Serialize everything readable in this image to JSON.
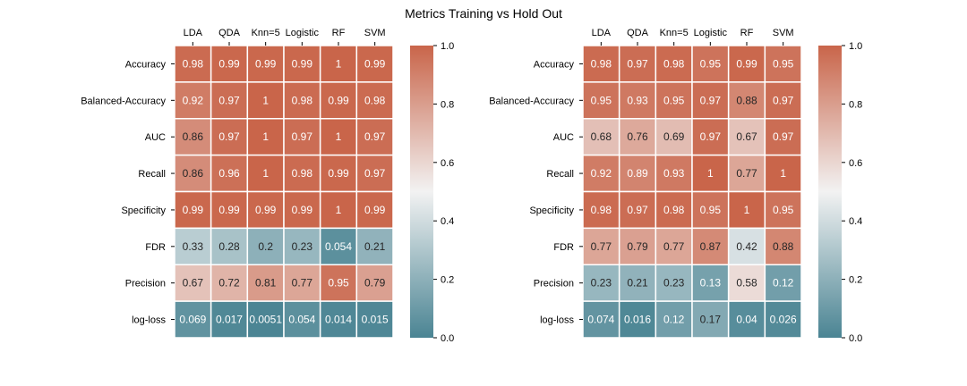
{
  "title": "Metrics Training vs Hold Out",
  "chart_data": [
    {
      "type": "heatmap",
      "columns": [
        "LDA",
        "QDA",
        "Knn=5",
        "Logistic",
        "RF",
        "SVM"
      ],
      "rows": [
        "Accuracy",
        "Balanced-Accuracy",
        "AUC",
        "Recall",
        "Specificity",
        "FDR",
        "Precision",
        "log-loss"
      ],
      "values": [
        [
          0.98,
          0.99,
          0.99,
          0.99,
          1,
          0.99
        ],
        [
          0.92,
          0.97,
          1,
          0.98,
          0.99,
          0.98
        ],
        [
          0.86,
          0.97,
          1,
          0.97,
          1,
          0.97
        ],
        [
          0.86,
          0.96,
          1,
          0.98,
          0.99,
          0.97
        ],
        [
          0.99,
          0.99,
          0.99,
          0.99,
          1,
          0.99
        ],
        [
          0.33,
          0.28,
          0.2,
          0.23,
          0.054,
          0.21
        ],
        [
          0.67,
          0.72,
          0.81,
          0.77,
          0.95,
          0.79
        ],
        [
          0.069,
          0.017,
          0.0051,
          0.054,
          0.014,
          0.015
        ]
      ],
      "colorbar": {
        "range": [
          0,
          1
        ],
        "ticks": [
          "0.0",
          "0.2",
          "0.4",
          "0.6",
          "0.8",
          "1.0"
        ]
      }
    },
    {
      "type": "heatmap",
      "columns": [
        "LDA",
        "QDA",
        "Knn=5",
        "Logistic",
        "RF",
        "SVM"
      ],
      "rows": [
        "Accuracy",
        "Balanced-Accuracy",
        "AUC",
        "Recall",
        "Specificity",
        "FDR",
        "Precision",
        "log-loss"
      ],
      "values": [
        [
          0.98,
          0.97,
          0.98,
          0.95,
          0.99,
          0.95
        ],
        [
          0.95,
          0.93,
          0.95,
          0.97,
          0.88,
          0.97
        ],
        [
          0.68,
          0.76,
          0.69,
          0.97,
          0.67,
          0.97
        ],
        [
          0.92,
          0.89,
          0.93,
          1,
          0.77,
          1
        ],
        [
          0.98,
          0.97,
          0.98,
          0.95,
          1,
          0.95
        ],
        [
          0.77,
          0.79,
          0.77,
          0.87,
          0.42,
          0.88
        ],
        [
          0.23,
          0.21,
          0.23,
          0.13,
          0.58,
          0.12
        ],
        [
          0.074,
          0.016,
          0.12,
          0.17,
          0.04,
          0.026
        ]
      ],
      "colorbar": {
        "range": [
          0,
          1
        ],
        "ticks": [
          "0.0",
          "0.2",
          "0.4",
          "0.6",
          "0.8",
          "1.0"
        ]
      }
    }
  ],
  "colors": {
    "low": "#4a8493",
    "mid": "#f2f2f2",
    "high": "#c9654a"
  }
}
